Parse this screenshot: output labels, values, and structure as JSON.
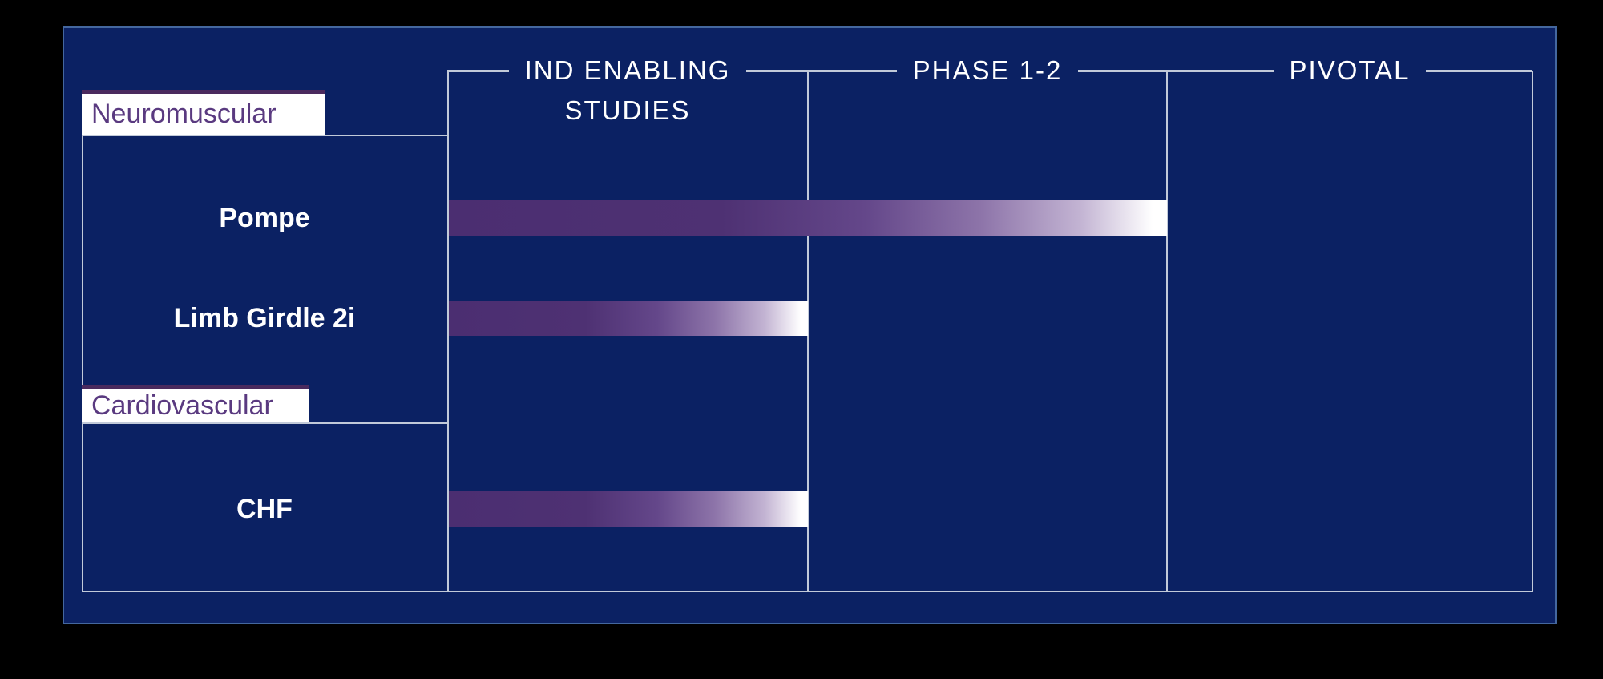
{
  "panel": {
    "background_color": "#0b2163",
    "border_color": "#44679e",
    "grid_line_color": "#c2cad9"
  },
  "header": {
    "columns": [
      {
        "line1": "IND ENABLING",
        "line2": "STUDIES"
      },
      {
        "line1": "PHASE 1-2"
      },
      {
        "line1": "PIVOTAL"
      }
    ]
  },
  "chart_data": {
    "type": "bar",
    "orientation": "horizontal",
    "title": "",
    "phases": [
      "IND ENABLING STUDIES",
      "PHASE 1-2",
      "PIVOTAL"
    ],
    "phase_axis_range": [
      0,
      3
    ],
    "grid": "phase columns separated by vertical rules",
    "groups": [
      {
        "label": "Neuromuscular",
        "programs": [
          {
            "name": "Pompe",
            "phases_completed": 2
          },
          {
            "name": "Limb Girdle 2i",
            "phases_completed": 1
          }
        ]
      },
      {
        "label": "Cardiovascular",
        "programs": [
          {
            "name": "CHF",
            "phases_completed": 1
          }
        ]
      }
    ],
    "bar_gradient": {
      "start": "#4b2e71",
      "mid": "#8d74a9",
      "end": "#ffffff"
    },
    "tab_style": {
      "text_color": "#5a3a80",
      "top_border_color": "#4a2a5e",
      "background": "#ffffff"
    }
  }
}
